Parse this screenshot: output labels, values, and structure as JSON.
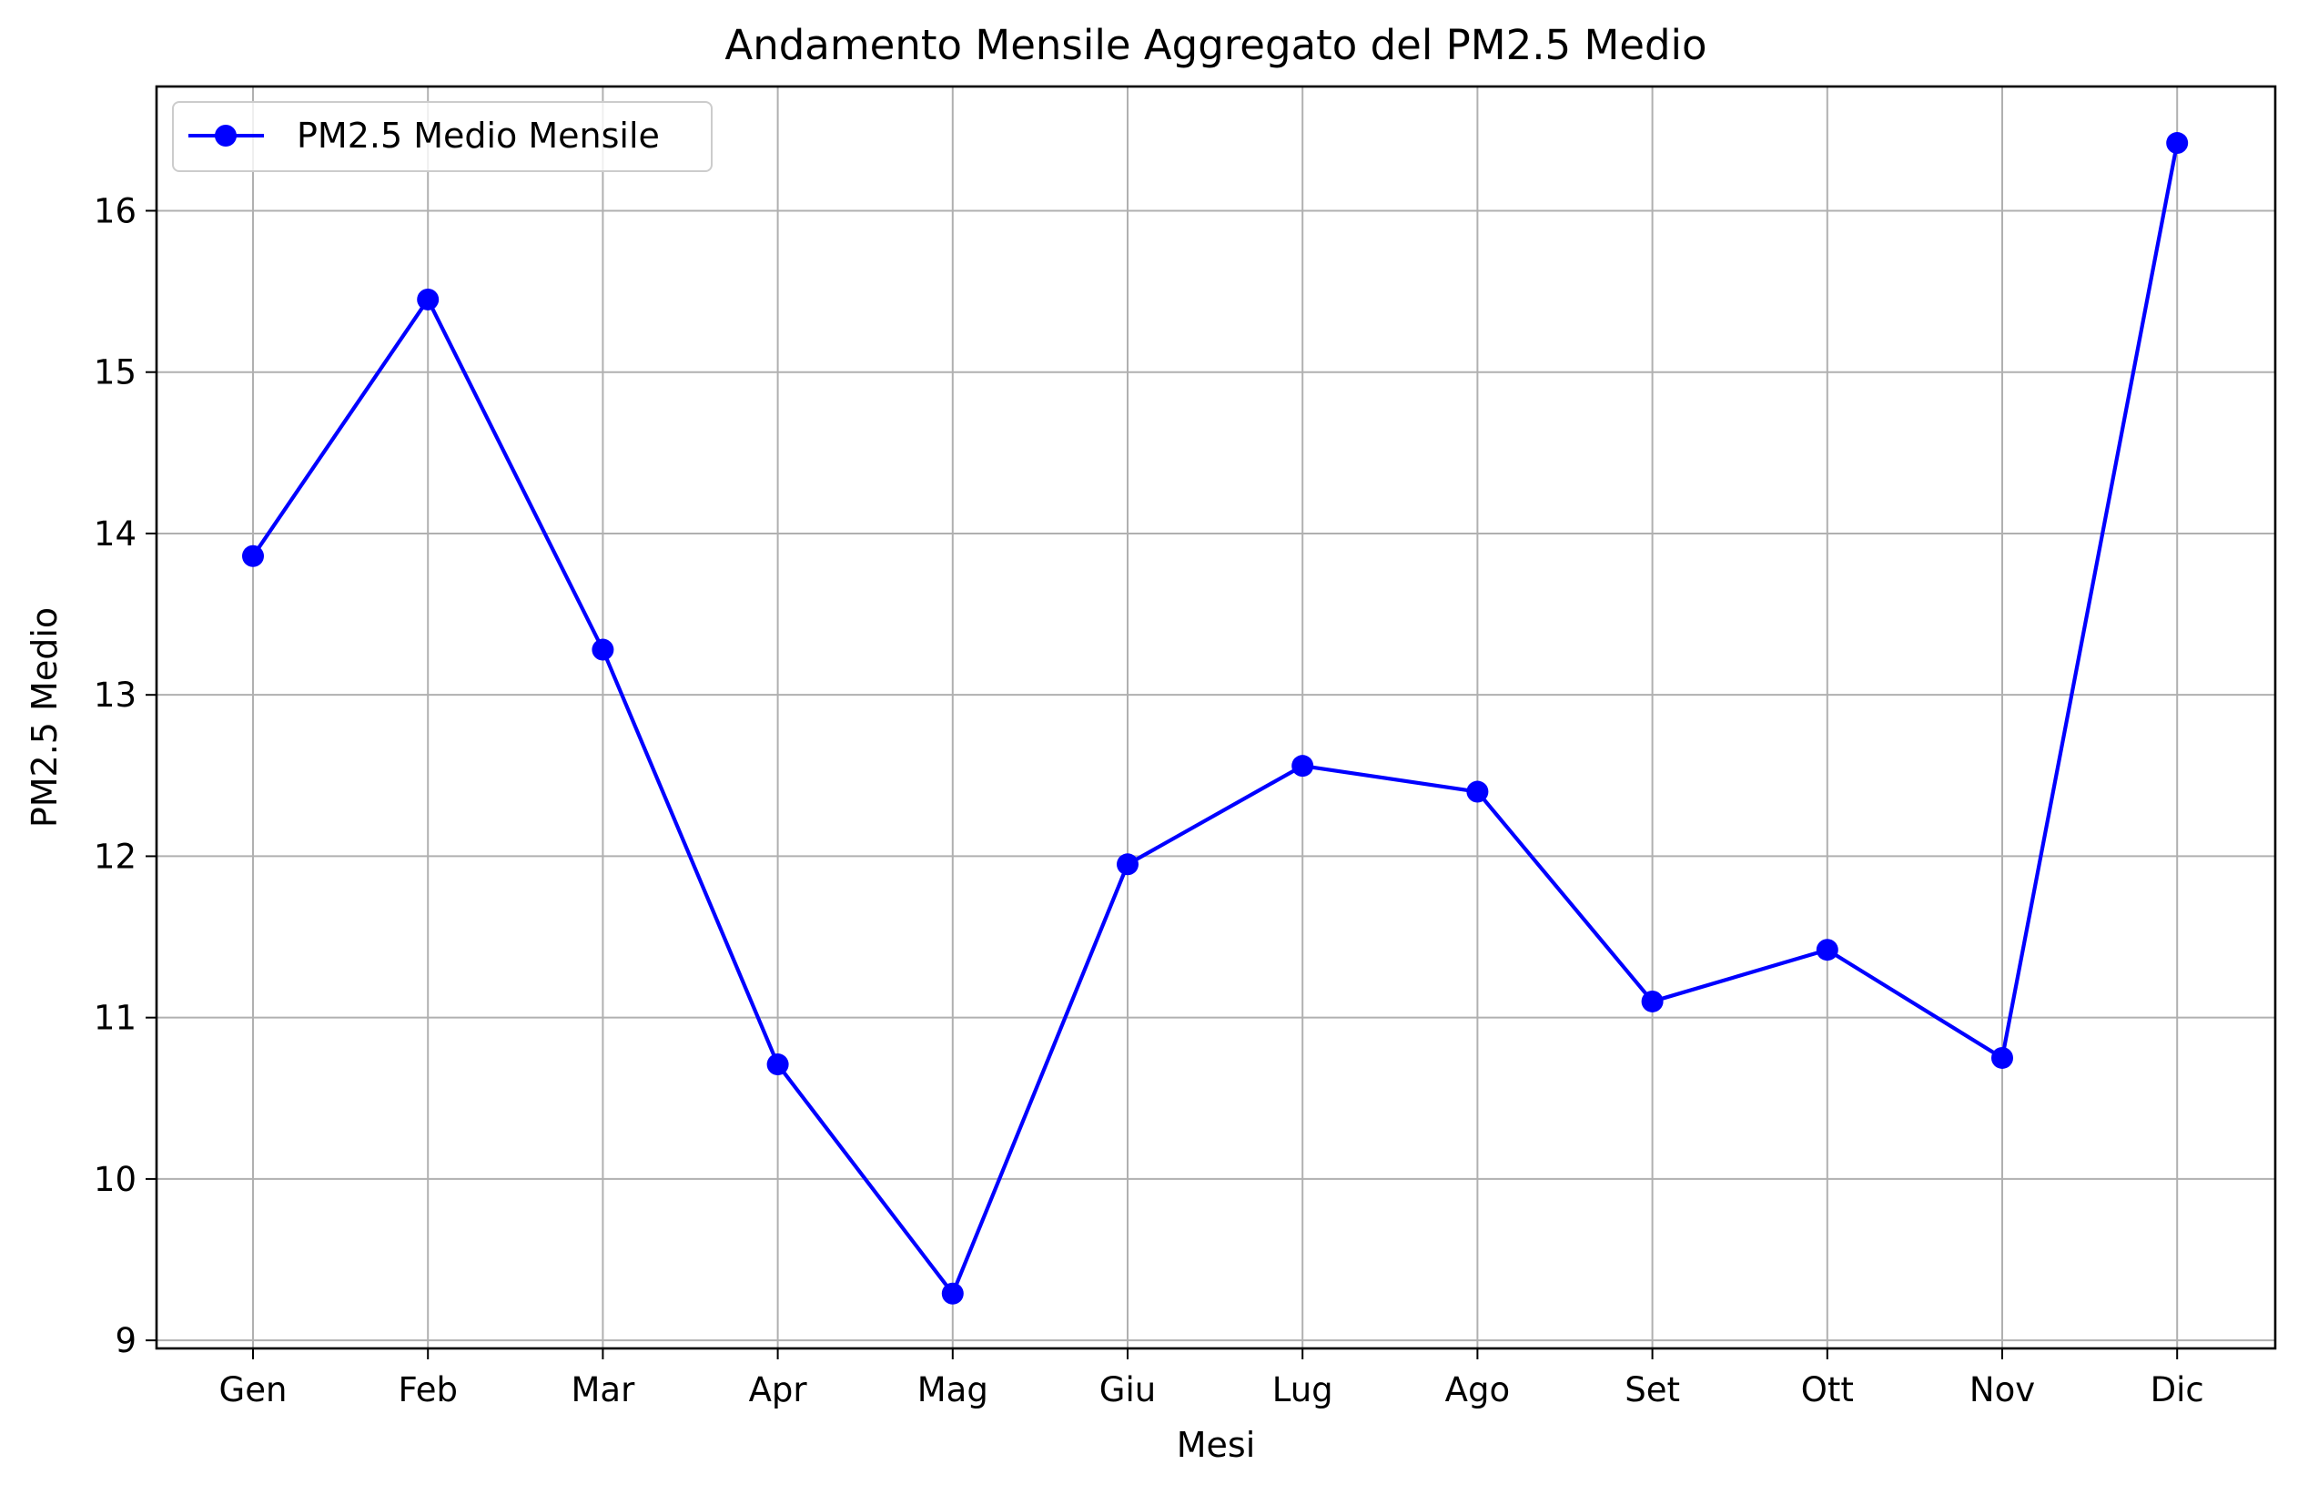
{
  "chart_data": {
    "type": "line",
    "title": "Andamento Mensile Aggregato del PM2.5 Medio",
    "xlabel": "Mesi",
    "ylabel": "PM2.5 Medio",
    "categories": [
      "Gen",
      "Feb",
      "Mar",
      "Apr",
      "Mag",
      "Giu",
      "Lug",
      "Ago",
      "Set",
      "Ott",
      "Nov",
      "Dic"
    ],
    "series": [
      {
        "name": "PM2.5 Medio Mensile",
        "color": "#0000ff",
        "marker": "circle",
        "values": [
          13.86,
          15.45,
          13.28,
          10.71,
          9.29,
          11.95,
          12.56,
          12.4,
          11.1,
          11.42,
          10.75,
          16.42
        ]
      }
    ],
    "ylim": [
      8.95,
      16.77
    ],
    "yticks": [
      9,
      10,
      11,
      12,
      13,
      14,
      15,
      16
    ],
    "grid": true,
    "legend_position": "top-left"
  }
}
